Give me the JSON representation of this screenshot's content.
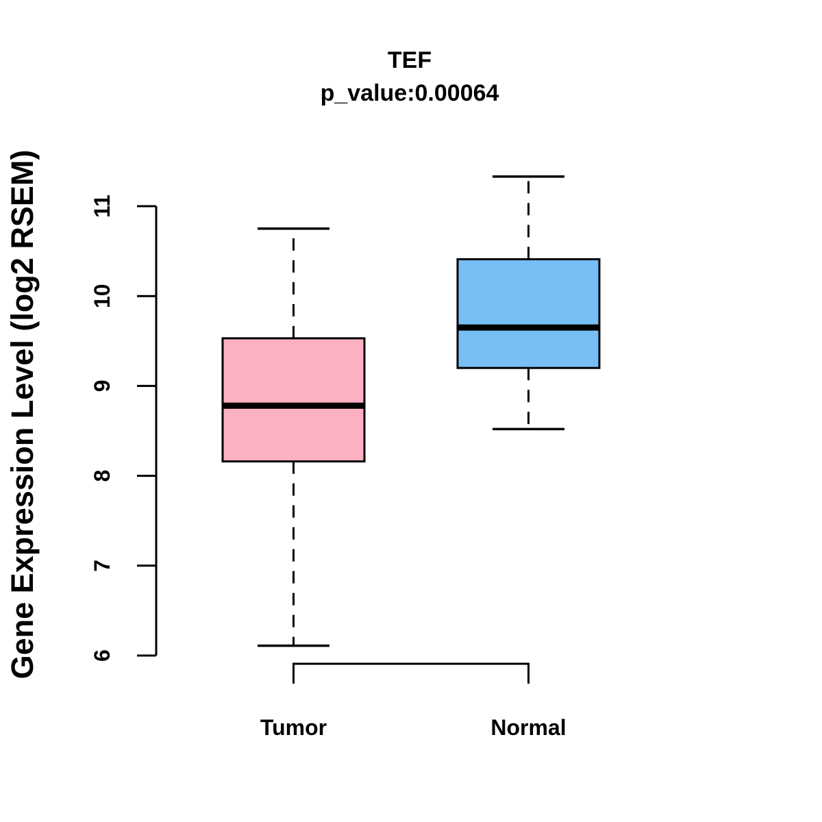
{
  "chart_data": {
    "type": "boxplot",
    "title": "TEF",
    "subtitle": "p_value:0.00064",
    "ylabel": "Gene Expression Level (log2 RSEM)",
    "xlabel": "",
    "categories": [
      "Tumor",
      "Normal"
    ],
    "series": [
      {
        "name": "Tumor",
        "color": "#FCB1C2",
        "whisker_low": 6.11,
        "q1": 8.16,
        "median": 8.78,
        "q3": 9.53,
        "whisker_high": 10.75
      },
      {
        "name": "Normal",
        "color": "#77BEF5",
        "whisker_low": 8.52,
        "q1": 9.2,
        "median": 9.65,
        "q3": 10.41,
        "whisker_high": 11.33
      }
    ],
    "yticks": [
      6,
      7,
      8,
      9,
      10,
      11
    ],
    "ylim": [
      5.9,
      11.45
    ],
    "grid": "off",
    "legend": "none",
    "box_border_color": "#000000",
    "median_color": "#000000",
    "whisker_style": "dashed"
  }
}
